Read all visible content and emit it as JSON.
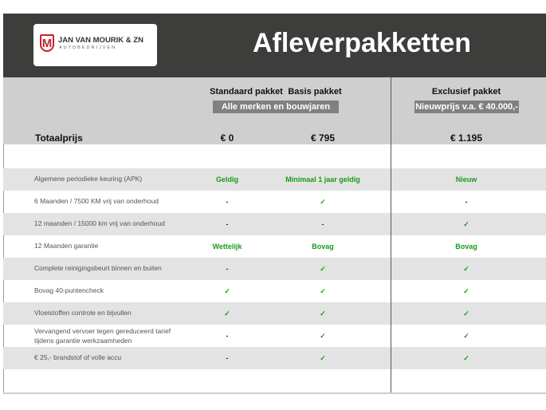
{
  "logo": {
    "mark": "M",
    "name": "JAN VAN MOURIK & ZN",
    "subtitle": "AUTOBEDRIJVEN"
  },
  "title": "Afleverpakketten",
  "columns": {
    "standaard": "Standaard pakket",
    "basis": "Basis pakket",
    "exclusief": "Exclusief pakket",
    "group_note": "Alle merken en bouwjaren",
    "exclusief_note": "Nieuwprijs v.a. € 40.000,-"
  },
  "totals": {
    "label": "Totaalprijs",
    "standaard": "€ 0",
    "basis": "€ 795",
    "exclusief": "€ 1.195"
  },
  "colors": {
    "header": "#3d3d3c",
    "accent_green": "#1a9a1a",
    "logo_red": "#c8232c"
  },
  "rows": [
    {
      "label": "Algemene periodieke keuring (APK)",
      "standaard": "Geldig",
      "basis": "Minimaal 1 jaar geldig",
      "exclusief": "Nieuw"
    },
    {
      "label": "6 Maanden / 7500 KM vrij van onderhoud",
      "standaard": "-",
      "basis": "✓",
      "exclusief": "-"
    },
    {
      "label": "12 maanden / 15000 km vrij van onderhoud",
      "standaard": "-",
      "basis": "-",
      "exclusief": "✓"
    },
    {
      "label": "12 Maanden  garantie",
      "standaard": "Wettelijk",
      "basis": "Bovag",
      "exclusief": "Bovag"
    },
    {
      "label": "Complete reinigingsbeurt binnen en buiten",
      "standaard": "-",
      "basis": "✓",
      "exclusief": "✓"
    },
    {
      "label": "Bovag 40-puntencheck",
      "standaard": "✓",
      "basis": "✓",
      "exclusief": "✓"
    },
    {
      "label": "Vloeistoffen controle en bijvullen",
      "standaard": "✓",
      "basis": "✓",
      "exclusief": "✓"
    },
    {
      "label": "Vervangend vervoer tegen gereduceerd tarief tijdens garantie werkzaamheden",
      "standaard": "-",
      "basis": "✓",
      "exclusief": "✓"
    },
    {
      "label": "€ 25,- brandstof of  volle accu",
      "standaard": "-",
      "basis": "✓",
      "exclusief": "✓"
    }
  ]
}
